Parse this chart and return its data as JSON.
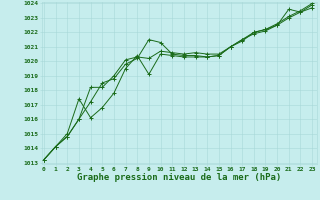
{
  "line1_x": [
    0,
    1,
    2,
    3,
    4,
    5,
    6,
    7,
    8,
    9,
    10,
    11,
    12,
    13,
    14,
    15,
    16,
    17,
    18,
    19,
    20,
    21,
    22,
    23
  ],
  "line1_y": [
    1013.2,
    1014.1,
    1014.8,
    1016.0,
    1017.2,
    1018.5,
    1018.8,
    1019.8,
    1020.2,
    1021.5,
    1021.3,
    1020.5,
    1020.4,
    1020.4,
    1020.3,
    1020.4,
    1021.0,
    1021.4,
    1022.0,
    1022.2,
    1022.5,
    1023.6,
    1023.4,
    1023.7
  ],
  "line2_x": [
    0,
    1,
    2,
    3,
    4,
    5,
    6,
    7,
    8,
    9,
    10,
    11,
    12,
    13,
    14,
    15,
    16,
    17,
    18,
    19,
    20,
    21,
    22,
    23
  ],
  "line2_y": [
    1013.2,
    1014.1,
    1014.8,
    1016.0,
    1018.2,
    1018.2,
    1019.0,
    1020.1,
    1020.3,
    1020.2,
    1020.7,
    1020.6,
    1020.5,
    1020.6,
    1020.5,
    1020.5,
    1021.0,
    1021.5,
    1022.0,
    1022.2,
    1022.6,
    1023.1,
    1023.5,
    1024.0
  ],
  "line3_x": [
    0,
    1,
    2,
    3,
    4,
    5,
    6,
    7,
    8,
    9,
    10,
    11,
    12,
    13,
    14,
    15,
    16,
    17,
    18,
    19,
    20,
    21,
    22,
    23
  ],
  "line3_y": [
    1013.2,
    1014.1,
    1015.0,
    1017.4,
    1016.1,
    1016.8,
    1017.8,
    1019.5,
    1020.4,
    1019.1,
    1020.5,
    1020.4,
    1020.3,
    1020.3,
    1020.3,
    1020.4,
    1021.0,
    1021.5,
    1021.9,
    1022.1,
    1022.5,
    1023.0,
    1023.4,
    1023.9
  ],
  "ylim_min": 1013,
  "ylim_max": 1024,
  "xlim_min": 0,
  "xlim_max": 23,
  "yticks": [
    1013,
    1014,
    1015,
    1016,
    1017,
    1018,
    1019,
    1020,
    1021,
    1022,
    1023,
    1024
  ],
  "xticks": [
    0,
    1,
    2,
    3,
    4,
    5,
    6,
    7,
    8,
    9,
    10,
    11,
    12,
    13,
    14,
    15,
    16,
    17,
    18,
    19,
    20,
    21,
    22,
    23
  ],
  "xlabel": "Graphe pression niveau de la mer (hPa)",
  "line_color": "#1a6b1a",
  "bg_color": "#c6eded",
  "grid_color": "#a8d8d8",
  "tick_fontsize": 4.5,
  "xlabel_fontsize": 6.5
}
